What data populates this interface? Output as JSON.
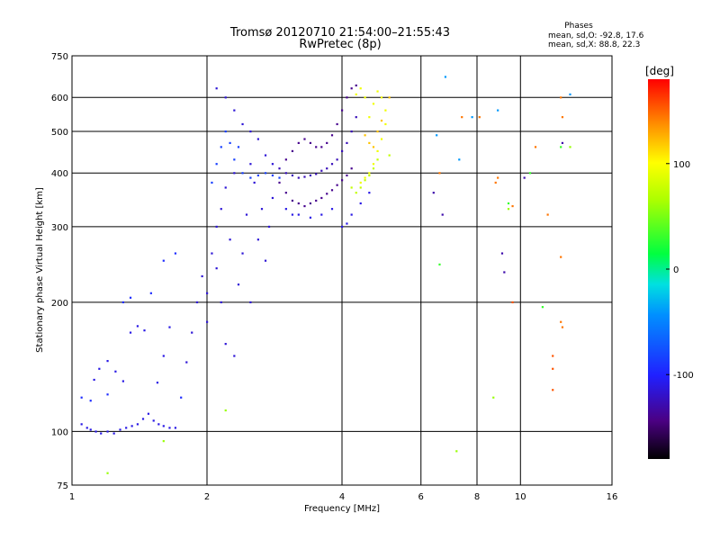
{
  "chart_data": {
    "type": "scatter",
    "title": "Tromsø 20120710 21:54:00–21:55:43",
    "subtitle": "RwPretec (8p)",
    "xlabel": "Frequency [MHz]",
    "ylabel": "Stationary phase Virtual Height [km]",
    "x_scale": "log",
    "y_scale": "log",
    "xlim": [
      1,
      16
    ],
    "ylim": [
      75,
      750
    ],
    "x_ticks": [
      1,
      2,
      4,
      6,
      8,
      10,
      16
    ],
    "x_tick_labels": [
      "1",
      "2",
      "4",
      "6",
      "8",
      "10",
      "16"
    ],
    "y_ticks": [
      75,
      100,
      200,
      300,
      400,
      500,
      600,
      750
    ],
    "y_tick_labels": [
      "75",
      "100",
      "200",
      "300",
      "400",
      "500",
      "600",
      "750"
    ],
    "grid": true,
    "stats": {
      "heading": "Phases",
      "line_o": "mean, sd,O: -92.8, 17.6",
      "line_x": "mean, sd,X:  88.8, 22.3"
    },
    "colorbar": {
      "label": "[deg]",
      "range": [
        -180,
        180
      ],
      "ticks": [
        100,
        0,
        -100
      ],
      "tick_labels": [
        "100",
        "0",
        "-100"
      ]
    },
    "point_groups": [
      {
        "phase": -110,
        "points": [
          [
            1.05,
            104
          ],
          [
            1.08,
            102
          ],
          [
            1.1,
            101
          ],
          [
            1.13,
            100
          ],
          [
            1.16,
            99
          ],
          [
            1.2,
            100
          ],
          [
            1.24,
            99
          ],
          [
            1.28,
            101
          ],
          [
            1.32,
            102
          ],
          [
            1.36,
            103
          ],
          [
            1.4,
            104
          ],
          [
            1.44,
            107
          ],
          [
            1.48,
            110
          ],
          [
            1.52,
            106
          ],
          [
            1.56,
            104
          ],
          [
            1.6,
            103
          ],
          [
            1.65,
            102
          ],
          [
            1.7,
            102
          ],
          [
            1.12,
            132
          ],
          [
            1.15,
            140
          ],
          [
            1.2,
            146
          ],
          [
            1.25,
            138
          ],
          [
            1.3,
            131
          ],
          [
            1.35,
            170
          ],
          [
            1.4,
            176
          ],
          [
            1.45,
            172
          ],
          [
            1.55,
            130
          ],
          [
            1.6,
            150
          ],
          [
            1.65,
            175
          ]
        ]
      },
      {
        "phase": -95,
        "points": [
          [
            1.05,
            120
          ],
          [
            1.1,
            118
          ],
          [
            1.2,
            122
          ],
          [
            1.3,
            200
          ],
          [
            1.35,
            205
          ],
          [
            1.5,
            210
          ],
          [
            1.6,
            250
          ],
          [
            1.7,
            260
          ],
          [
            1.75,
            120
          ]
        ]
      },
      {
        "phase": -115,
        "points": [
          [
            1.8,
            145
          ],
          [
            1.85,
            170
          ],
          [
            1.9,
            200
          ],
          [
            1.95,
            230
          ],
          [
            2.0,
            210
          ],
          [
            2.0,
            180
          ],
          [
            2.05,
            260
          ],
          [
            2.1,
            300
          ],
          [
            2.1,
            240
          ],
          [
            2.15,
            200
          ],
          [
            2.15,
            330
          ],
          [
            2.2,
            160
          ],
          [
            2.2,
            370
          ],
          [
            2.25,
            280
          ],
          [
            2.3,
            150
          ],
          [
            2.3,
            400
          ],
          [
            2.35,
            220
          ],
          [
            2.4,
            260
          ],
          [
            2.45,
            320
          ],
          [
            2.5,
            200
          ],
          [
            2.5,
            420
          ],
          [
            2.55,
            380
          ],
          [
            2.6,
            280
          ],
          [
            2.65,
            330
          ],
          [
            2.7,
            250
          ],
          [
            2.75,
            300
          ],
          [
            2.8,
            350
          ],
          [
            2.1,
            630
          ],
          [
            2.2,
            600
          ],
          [
            2.3,
            560
          ],
          [
            2.4,
            520
          ],
          [
            2.5,
            500
          ],
          [
            2.6,
            480
          ],
          [
            2.7,
            440
          ],
          [
            2.8,
            420
          ]
        ]
      },
      {
        "phase": -85,
        "points": [
          [
            2.05,
            380
          ],
          [
            2.1,
            420
          ],
          [
            2.15,
            460
          ],
          [
            2.2,
            500
          ],
          [
            2.25,
            470
          ],
          [
            2.3,
            430
          ],
          [
            2.35,
            460
          ],
          [
            2.4,
            400
          ],
          [
            2.5,
            390
          ],
          [
            2.6,
            395
          ],
          [
            2.7,
            400
          ],
          [
            2.8,
            395
          ],
          [
            2.9,
            390
          ]
        ]
      },
      {
        "phase": -140,
        "points": [
          [
            2.9,
            380
          ],
          [
            3.0,
            360
          ],
          [
            3.1,
            345
          ],
          [
            3.2,
            340
          ],
          [
            3.3,
            335
          ],
          [
            3.4,
            340
          ],
          [
            3.5,
            345
          ],
          [
            3.6,
            350
          ],
          [
            3.7,
            358
          ],
          [
            3.8,
            365
          ],
          [
            3.9,
            375
          ],
          [
            4.0,
            385
          ],
          [
            4.1,
            395
          ],
          [
            4.2,
            410
          ],
          [
            3.0,
            430
          ],
          [
            3.1,
            450
          ],
          [
            3.2,
            470
          ],
          [
            3.3,
            480
          ],
          [
            3.4,
            470
          ],
          [
            3.5,
            460
          ],
          [
            3.6,
            460
          ],
          [
            3.7,
            470
          ],
          [
            3.8,
            490
          ],
          [
            3.9,
            520
          ],
          [
            4.0,
            560
          ],
          [
            4.1,
            600
          ],
          [
            4.2,
            630
          ],
          [
            4.3,
            640
          ]
        ]
      },
      {
        "phase": -125,
        "points": [
          [
            2.9,
            410
          ],
          [
            3.0,
            400
          ],
          [
            3.1,
            395
          ],
          [
            3.2,
            390
          ],
          [
            3.3,
            392
          ],
          [
            3.4,
            395
          ],
          [
            3.5,
            398
          ],
          [
            3.6,
            405
          ],
          [
            3.7,
            410
          ],
          [
            3.8,
            420
          ],
          [
            3.9,
            430
          ],
          [
            4.0,
            450
          ],
          [
            4.1,
            470
          ],
          [
            4.2,
            500
          ],
          [
            4.3,
            540
          ]
        ]
      },
      {
        "phase": -110,
        "points": [
          [
            3.0,
            330
          ],
          [
            3.1,
            320
          ],
          [
            3.2,
            320
          ],
          [
            3.4,
            315
          ],
          [
            3.6,
            320
          ],
          [
            3.8,
            330
          ],
          [
            4.0,
            300
          ],
          [
            4.1,
            305
          ],
          [
            4.2,
            320
          ],
          [
            4.4,
            340
          ],
          [
            4.6,
            360
          ]
        ]
      },
      {
        "phase": 95,
        "points": [
          [
            4.4,
            380
          ],
          [
            4.5,
            390
          ],
          [
            4.6,
            400
          ],
          [
            4.7,
            420
          ],
          [
            4.8,
            450
          ],
          [
            4.9,
            480
          ],
          [
            5.0,
            520
          ],
          [
            5.0,
            560
          ],
          [
            4.9,
            600
          ],
          [
            4.8,
            620
          ],
          [
            4.7,
            580
          ],
          [
            4.6,
            540
          ],
          [
            4.5,
            600
          ],
          [
            4.4,
            630
          ],
          [
            4.3,
            610
          ]
        ]
      },
      {
        "phase": 75,
        "points": [
          [
            4.2,
            370
          ],
          [
            4.3,
            360
          ],
          [
            4.4,
            370
          ],
          [
            4.5,
            385
          ],
          [
            4.6,
            395
          ],
          [
            4.7,
            410
          ],
          [
            4.8,
            430
          ],
          [
            5.1,
            440
          ]
        ]
      },
      {
        "phase": 120,
        "points": [
          [
            4.5,
            490
          ],
          [
            4.6,
            470
          ],
          [
            4.7,
            460
          ],
          [
            4.8,
            500
          ],
          [
            4.9,
            530
          ],
          [
            5.1,
            600
          ]
        ]
      },
      {
        "phase": 145,
        "points": [
          [
            6.6,
            400
          ],
          [
            7.4,
            540
          ],
          [
            8.1,
            540
          ],
          [
            8.8,
            380
          ],
          [
            8.9,
            390
          ],
          [
            9.6,
            335
          ],
          [
            10.8,
            460
          ],
          [
            11.5,
            320
          ],
          [
            12.3,
            600
          ],
          [
            12.4,
            540
          ],
          [
            12.3,
            180
          ],
          [
            12.4,
            175
          ],
          [
            12.3,
            255
          ]
        ]
      },
      {
        "phase": 155,
        "points": [
          [
            11.8,
            150
          ],
          [
            11.8,
            140
          ],
          [
            11.8,
            125
          ],
          [
            9.6,
            200
          ]
        ]
      },
      {
        "phase": 30,
        "points": [
          [
            6.6,
            245
          ],
          [
            9.4,
            340
          ],
          [
            10.5,
            400
          ],
          [
            11.2,
            195
          ],
          [
            12.3,
            460
          ]
        ]
      },
      {
        "phase": -40,
        "points": [
          [
            6.5,
            490
          ],
          [
            6.8,
            670
          ],
          [
            7.3,
            430
          ],
          [
            7.8,
            540
          ],
          [
            8.9,
            560
          ],
          [
            12.9,
            610
          ]
        ]
      },
      {
        "phase": -130,
        "points": [
          [
            6.4,
            360
          ],
          [
            6.7,
            320
          ],
          [
            9.1,
            260
          ],
          [
            9.2,
            235
          ],
          [
            10.2,
            390
          ],
          [
            12.4,
            470
          ]
        ]
      },
      {
        "phase": 60,
        "points": [
          [
            1.2,
            80
          ],
          [
            1.6,
            95
          ],
          [
            7.2,
            90
          ],
          [
            8.7,
            120
          ],
          [
            9.4,
            330
          ],
          [
            12.9,
            460
          ],
          [
            2.2,
            112
          ]
        ]
      }
    ]
  }
}
